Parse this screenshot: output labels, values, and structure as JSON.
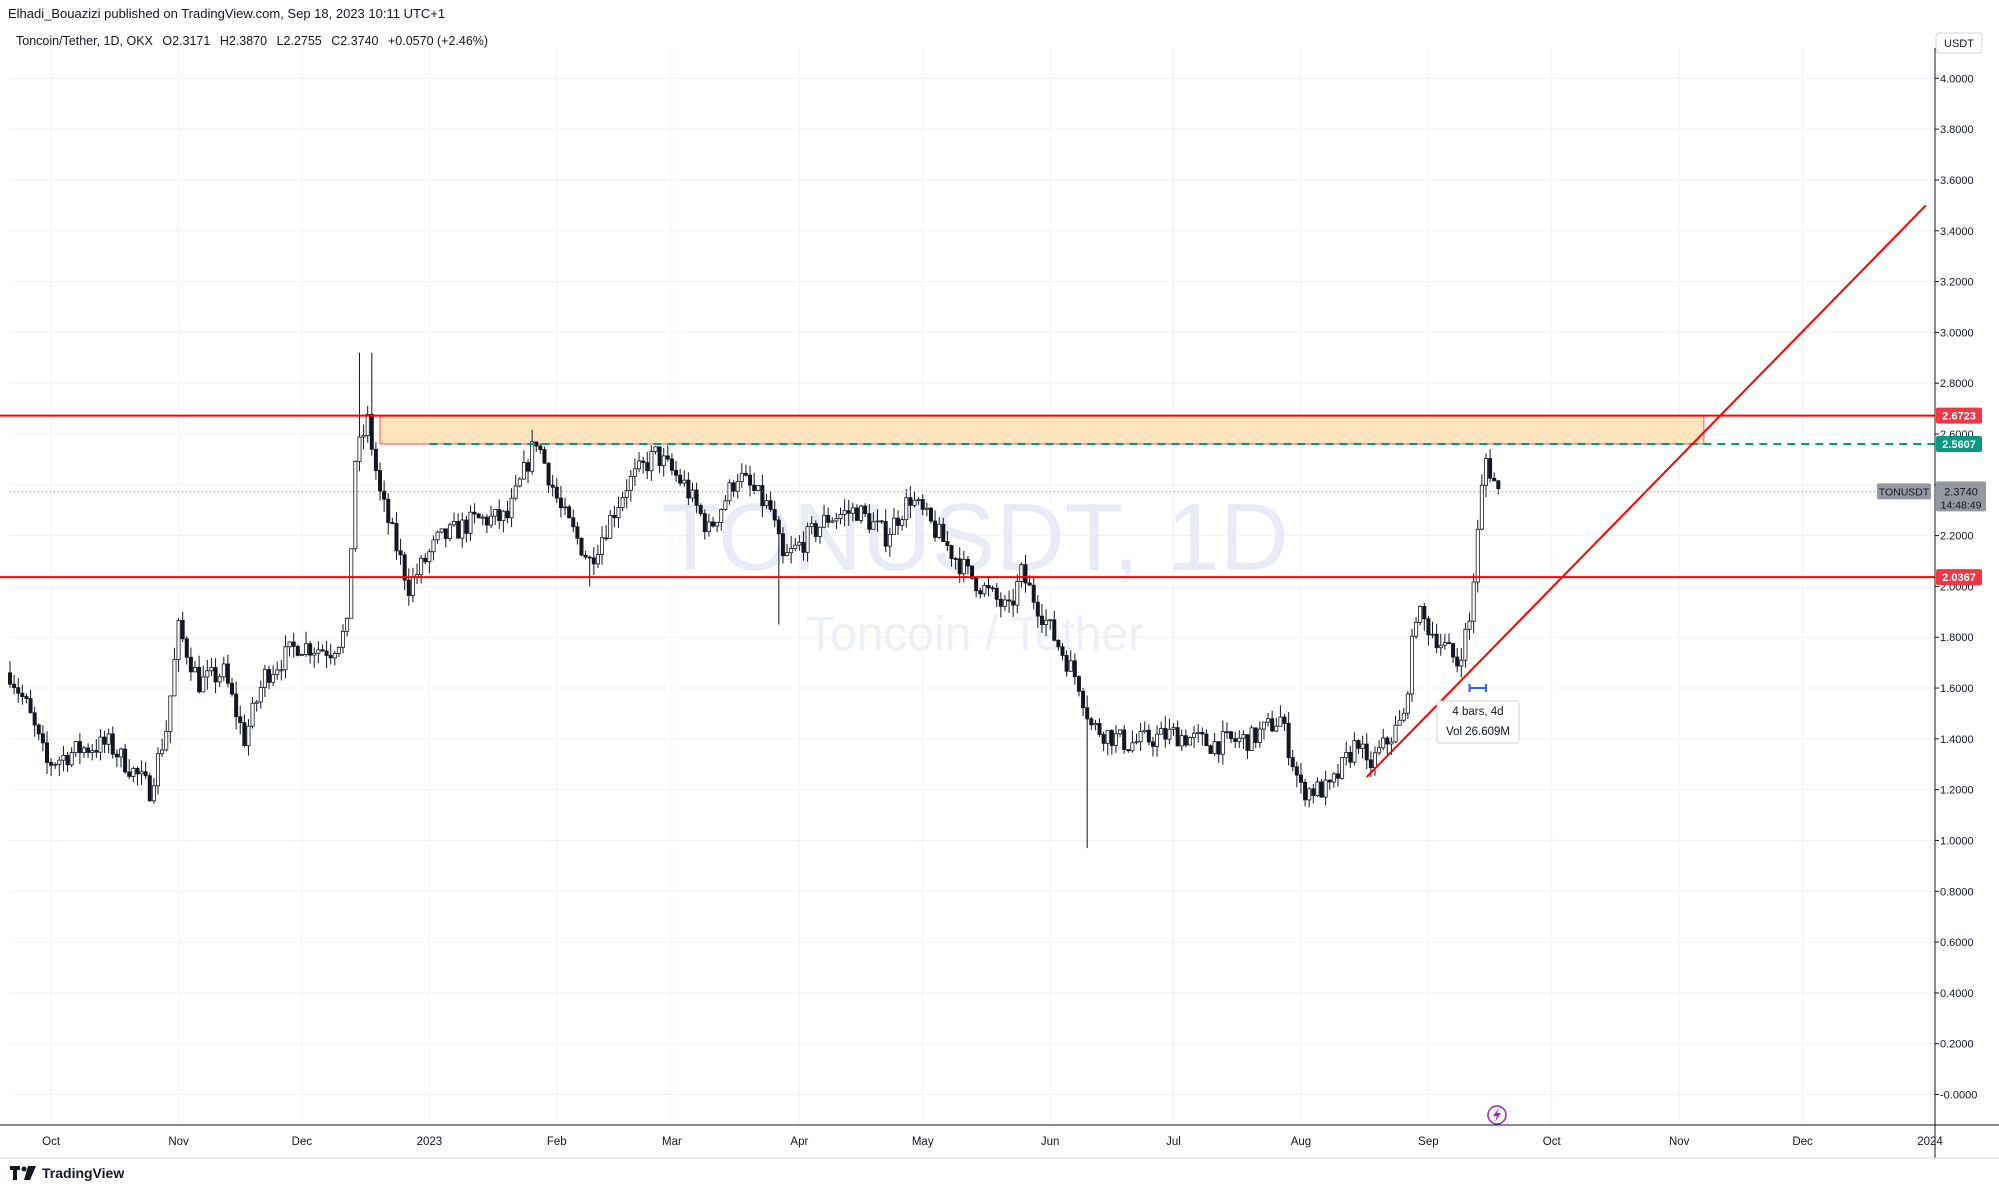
{
  "header": {
    "published": "Elhadi_Bouazizi published on TradingView.com, Sep 18, 2023 10:11 UTC+1"
  },
  "symbol": {
    "name": "Toncoin/Tether, 1D, OKX",
    "open": "O2.3171",
    "high": "H2.3870",
    "low": "L2.2755",
    "close": "C2.3740",
    "change": "+0.0570 (+2.46%)"
  },
  "currency": "USDT",
  "watermark": {
    "ticker": "TONUSDT, 1D",
    "name": "Toncoin / Tether"
  },
  "levels": {
    "resistance_top": "2.6723",
    "dashed": "2.5607",
    "support": "2.0367",
    "last_ticker": "TONUSDT",
    "last_price": "2.3740",
    "countdown": "14:48:49"
  },
  "measure": {
    "bars": "4 bars, 4d",
    "volume": "Vol 26.609M"
  },
  "footer": {
    "brand": "TradingView"
  },
  "colors": {
    "up": "#ffffff",
    "down": "#131722",
    "level_line": "#ff0000",
    "zone_fill": "#ffe0b2",
    "dashed": "#089981",
    "grid": "#f0f3fa"
  },
  "chart_data": {
    "type": "candlestick",
    "y_ticks": [
      "4.0000",
      "3.8000",
      "3.6000",
      "3.4000",
      "3.2000",
      "3.0000",
      "2.8000",
      "2.6000",
      "2.4000",
      "2.2000",
      "2.0000",
      "1.8000",
      "1.6000",
      "1.4000",
      "1.2000",
      "1.0000",
      "0.8000",
      "0.6000",
      "0.4000",
      "0.2000",
      "-0.0000"
    ],
    "x_ticks": [
      "Oct",
      "Nov",
      "Dec",
      "2023",
      "Feb",
      "Mar",
      "Apr",
      "May",
      "Jun",
      "Jul",
      "Aug",
      "Sep",
      "Oct",
      "Nov",
      "Dec",
      "2024"
    ],
    "ylim": [
      -0.12,
      4.08
    ],
    "x_range": [
      "2022-09-21",
      "2024-01-01"
    ],
    "horizontal_levels": [
      2.6723,
      2.5607,
      2.0367
    ],
    "zone": {
      "from": "2022-12-20",
      "to": "2023-11-07",
      "low": 2.5607,
      "high": 2.6723
    },
    "trendline": {
      "from": [
        "2023-08-17",
        1.25
      ],
      "to": [
        "2023-12-31",
        3.5
      ]
    },
    "price_anchors": [
      [
        "2022-09-21",
        1.66
      ],
      [
        "2022-09-25",
        1.53
      ],
      [
        "2022-09-30",
        1.3
      ],
      [
        "2022-10-08",
        1.36
      ],
      [
        "2022-10-15",
        1.38
      ],
      [
        "2022-10-25",
        1.2
      ],
      [
        "2022-10-29",
        1.44
      ],
      [
        "2022-11-01",
        1.83
      ],
      [
        "2022-11-06",
        1.62
      ],
      [
        "2022-11-12",
        1.66
      ],
      [
        "2022-11-17",
        1.4
      ],
      [
        "2022-11-22",
        1.65
      ],
      [
        "2022-11-30",
        1.77
      ],
      [
        "2022-12-08",
        1.75
      ],
      [
        "2022-12-12",
        1.83
      ],
      [
        "2022-12-14",
        2.5
      ],
      [
        "2022-12-17",
        2.65
      ],
      [
        "2022-12-20",
        2.36
      ],
      [
        "2022-12-27",
        2.0
      ],
      [
        "2023-01-03",
        2.18
      ],
      [
        "2023-01-12",
        2.26
      ],
      [
        "2023-01-20",
        2.27
      ],
      [
        "2023-01-27",
        2.58
      ],
      [
        "2023-02-02",
        2.3
      ],
      [
        "2023-02-09",
        2.1
      ],
      [
        "2023-02-18",
        2.4
      ],
      [
        "2023-02-25",
        2.52
      ],
      [
        "2023-03-04",
        2.4
      ],
      [
        "2023-03-10",
        2.22
      ],
      [
        "2023-03-17",
        2.44
      ],
      [
        "2023-03-25",
        2.3
      ],
      [
        "2023-03-28",
        2.1
      ],
      [
        "2023-04-08",
        2.27
      ],
      [
        "2023-04-15",
        2.3
      ],
      [
        "2023-04-22",
        2.2
      ],
      [
        "2023-04-28",
        2.35
      ],
      [
        "2023-05-05",
        2.2
      ],
      [
        "2023-05-12",
        2.05
      ],
      [
        "2023-05-22",
        1.9
      ],
      [
        "2023-05-25",
        2.05
      ],
      [
        "2023-06-02",
        1.8
      ],
      [
        "2023-06-08",
        1.62
      ],
      [
        "2023-06-11",
        1.45
      ],
      [
        "2023-06-20",
        1.38
      ],
      [
        "2023-07-01",
        1.42
      ],
      [
        "2023-07-10",
        1.38
      ],
      [
        "2023-07-20",
        1.4
      ],
      [
        "2023-07-27",
        1.48
      ],
      [
        "2023-08-01",
        1.2
      ],
      [
        "2023-08-08",
        1.2
      ],
      [
        "2023-08-15",
        1.4
      ],
      [
        "2023-08-17",
        1.28
      ],
      [
        "2023-08-26",
        1.48
      ],
      [
        "2023-08-29",
        1.9
      ],
      [
        "2023-09-03",
        1.8
      ],
      [
        "2023-09-08",
        1.7
      ],
      [
        "2023-09-11",
        1.86
      ],
      [
        "2023-09-14",
        2.38
      ],
      [
        "2023-09-15",
        2.5
      ],
      [
        "2023-09-18",
        2.37
      ]
    ]
  }
}
